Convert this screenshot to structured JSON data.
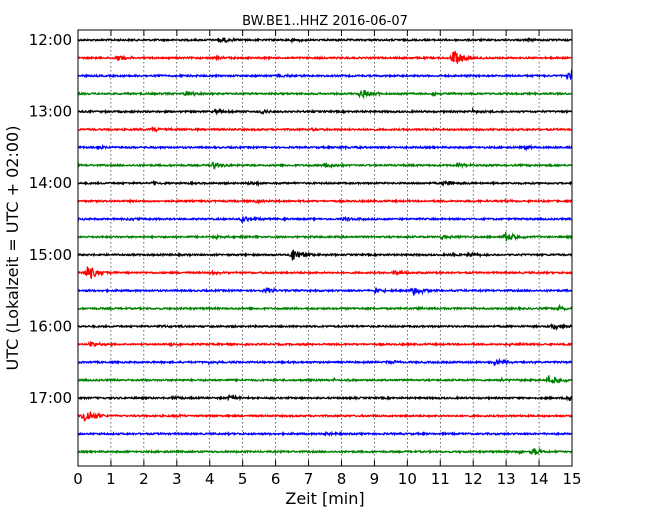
{
  "chart_data": {
    "type": "line",
    "title": "BW.BE1..HHZ 2016-06-07",
    "xlabel": "Zeit  [min]",
    "ylabel": "UTC (Lokalzeit = UTC + 02:00)",
    "xlim": [
      0,
      15
    ],
    "x_ticks": [
      "0",
      "1",
      "2",
      "3",
      "4",
      "5",
      "6",
      "7",
      "8",
      "9",
      "10",
      "11",
      "12",
      "13",
      "14",
      "15"
    ],
    "y_ticks": [
      "12:00",
      "13:00",
      "14:00",
      "15:00",
      "16:00",
      "17:00"
    ],
    "grid": "vertical dotted lines at each minute",
    "trace_interval_min": 15,
    "colors_cycle": [
      "#000000",
      "#ff0000",
      "#0000ff",
      "#008000"
    ],
    "traces": [
      {
        "start": "12:00",
        "events": [
          {
            "t": 4.3,
            "amp": 0.35
          },
          {
            "t": 6.5,
            "amp": 0.15
          },
          {
            "t": 13.7,
            "amp": 0.15
          }
        ]
      },
      {
        "start": "12:15",
        "events": [
          {
            "t": 1.2,
            "amp": 0.3
          },
          {
            "t": 11.4,
            "amp": 0.9
          },
          {
            "t": 4.2,
            "amp": 0.15
          }
        ]
      },
      {
        "start": "12:30",
        "events": [
          {
            "t": 14.9,
            "amp": 0.55
          },
          {
            "t": 6.1,
            "amp": 0.2
          },
          {
            "t": 2.5,
            "amp": 0.15
          }
        ]
      },
      {
        "start": "12:45",
        "events": [
          {
            "t": 8.6,
            "amp": 0.6
          },
          {
            "t": 3.3,
            "amp": 0.3
          },
          {
            "t": 10.8,
            "amp": 0.2
          }
        ]
      },
      {
        "start": "13:00",
        "events": [
          {
            "t": 4.2,
            "amp": 0.25
          },
          {
            "t": 5.6,
            "amp": 0.2
          },
          {
            "t": 12.0,
            "amp": 0.2
          }
        ]
      },
      {
        "start": "13:15",
        "events": [
          {
            "t": 2.3,
            "amp": 0.25
          },
          {
            "t": 7.1,
            "amp": 0.1
          }
        ]
      },
      {
        "start": "13:30",
        "events": [
          {
            "t": 0.6,
            "amp": 0.15
          },
          {
            "t": 13.6,
            "amp": 0.25
          },
          {
            "t": 8.0,
            "amp": 0.15
          }
        ]
      },
      {
        "start": "13:45",
        "events": [
          {
            "t": 4.1,
            "amp": 0.35
          },
          {
            "t": 7.5,
            "amp": 0.35
          },
          {
            "t": 11.5,
            "amp": 0.2
          }
        ]
      },
      {
        "start": "14:00",
        "events": [
          {
            "t": 11.1,
            "amp": 0.35
          },
          {
            "t": 5.2,
            "amp": 0.2
          },
          {
            "t": 2.3,
            "amp": 0.15
          }
        ]
      },
      {
        "start": "14:15",
        "events": [
          {
            "t": 5.4,
            "amp": 0.15
          },
          {
            "t": 13.0,
            "amp": 0.1
          }
        ]
      },
      {
        "start": "14:30",
        "events": [
          {
            "t": 5.0,
            "amp": 0.45
          },
          {
            "t": 1.5,
            "amp": 0.2
          },
          {
            "t": 8.1,
            "amp": 0.2
          }
        ]
      },
      {
        "start": "14:45",
        "events": [
          {
            "t": 13.0,
            "amp": 0.5
          },
          {
            "t": 11.1,
            "amp": 0.3
          },
          {
            "t": 4.2,
            "amp": 0.15
          }
        ]
      },
      {
        "start": "15:00",
        "events": [
          {
            "t": 6.5,
            "amp": 0.85
          },
          {
            "t": 11.9,
            "amp": 0.25
          },
          {
            "t": 11.4,
            "amp": 0.2
          }
        ]
      },
      {
        "start": "15:15",
        "events": [
          {
            "t": 0.3,
            "amp": 0.9
          },
          {
            "t": 9.6,
            "amp": 0.3
          },
          {
            "t": 4.1,
            "amp": 0.15
          }
        ]
      },
      {
        "start": "15:30",
        "events": [
          {
            "t": 10.2,
            "amp": 0.55
          },
          {
            "t": 9.0,
            "amp": 0.35
          },
          {
            "t": 5.7,
            "amp": 0.3
          }
        ]
      },
      {
        "start": "15:45",
        "events": [
          {
            "t": 14.6,
            "amp": 0.3
          },
          {
            "t": 10.4,
            "amp": 0.15
          }
        ]
      },
      {
        "start": "16:00",
        "events": [
          {
            "t": 14.4,
            "amp": 0.35
          },
          {
            "t": 2.5,
            "amp": 0.1
          }
        ]
      },
      {
        "start": "16:15",
        "events": [
          {
            "t": 0.4,
            "amp": 0.25
          },
          {
            "t": 2.8,
            "amp": 0.2
          },
          {
            "t": 13.1,
            "amp": 0.15
          }
        ]
      },
      {
        "start": "16:30",
        "events": [
          {
            "t": 12.7,
            "amp": 0.4
          },
          {
            "t": 9.4,
            "amp": 0.2
          },
          {
            "t": 4.0,
            "amp": 0.15
          }
        ]
      },
      {
        "start": "16:45",
        "events": [
          {
            "t": 14.3,
            "amp": 0.6
          },
          {
            "t": 7.8,
            "amp": 0.2
          },
          {
            "t": 12.9,
            "amp": 0.15
          }
        ]
      },
      {
        "start": "17:00",
        "events": [
          {
            "t": 4.6,
            "amp": 0.3
          },
          {
            "t": 14.9,
            "amp": 0.4
          },
          {
            "t": 2.9,
            "amp": 0.2
          }
        ]
      },
      {
        "start": "17:15",
        "events": [
          {
            "t": 0.2,
            "amp": 0.9
          },
          {
            "t": 3.0,
            "amp": 0.1
          }
        ]
      },
      {
        "start": "17:30",
        "events": [
          {
            "t": 7.5,
            "amp": 0.1
          }
        ]
      },
      {
        "start": "17:45",
        "events": [
          {
            "t": 13.8,
            "amp": 0.45
          },
          {
            "t": 13.4,
            "amp": 0.2
          }
        ]
      }
    ]
  }
}
